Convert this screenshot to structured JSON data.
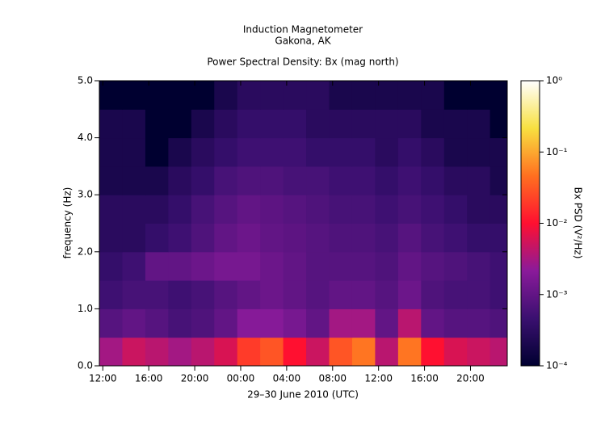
{
  "chart_data": {
    "type": "heatmap",
    "title": "Induction Magnetometer",
    "subtitle": "Gakona, AK",
    "plot_title": "Power Spectral Density: Bx (mag north)",
    "x_label": "29–30 June 2010 (UTC)",
    "y_label": "frequency (Hz)",
    "colorbar_label": "Bx PSD (V²/Hz)",
    "xlim": [
      11.7,
      47.2
    ],
    "xticks": [
      {
        "value": 12,
        "label": "12:00"
      },
      {
        "value": 16,
        "label": "16:00"
      },
      {
        "value": 20,
        "label": "20:00"
      },
      {
        "value": 24,
        "label": "00:00"
      },
      {
        "value": 28,
        "label": "04:00"
      },
      {
        "value": 32,
        "label": "08:00"
      },
      {
        "value": 36,
        "label": "12:00"
      },
      {
        "value": 40,
        "label": "16:00"
      },
      {
        "value": 44,
        "label": "20:00"
      }
    ],
    "ylim": [
      0,
      5
    ],
    "yticks": [
      {
        "value": 0,
        "label": "0.0"
      },
      {
        "value": 1,
        "label": "1.0"
      },
      {
        "value": 2,
        "label": "2.0"
      },
      {
        "value": 3,
        "label": "3.0"
      },
      {
        "value": 4,
        "label": "4.0"
      },
      {
        "value": 5,
        "label": "5.0"
      }
    ],
    "zlim": [
      0.0001,
      1
    ],
    "zscale": "log",
    "zticks": [
      {
        "value": 0.0001,
        "label": "10⁻⁴"
      },
      {
        "value": 0.001,
        "label": "10⁻³"
      },
      {
        "value": 0.01,
        "label": "10⁻²"
      },
      {
        "value": 0.1,
        "label": "10⁻¹"
      },
      {
        "value": 1,
        "label": "10⁰"
      }
    ],
    "colormap": [
      "#000030",
      "#3a1070",
      "#8a1a9a",
      "#ff1030",
      "#ff7020",
      "#f8e040",
      "#ffffff"
    ],
    "x": [
      12.7,
      14.7,
      16.7,
      18.7,
      20.7,
      22.7,
      24.7,
      26.7,
      28.7,
      30.7,
      32.7,
      34.7,
      36.7,
      38.7,
      40.7,
      42.7,
      44.7,
      46.7
    ],
    "y": [
      0.25,
      0.75,
      1.25,
      1.75,
      2.25,
      2.75,
      3.25,
      3.75,
      4.25,
      4.75
    ],
    "z": [
      [
        0.003,
        0.005,
        0.004,
        0.003,
        0.004,
        0.006,
        0.02,
        0.03,
        0.01,
        0.005,
        0.03,
        0.05,
        0.004,
        0.05,
        0.01,
        0.006,
        0.005,
        0.004
      ],
      [
        0.0008,
        0.001,
        0.0008,
        0.0006,
        0.0007,
        0.001,
        0.002,
        0.002,
        0.0015,
        0.001,
        0.003,
        0.003,
        0.001,
        0.004,
        0.001,
        0.0008,
        0.0008,
        0.0007
      ],
      [
        0.0005,
        0.0006,
        0.0006,
        0.0005,
        0.0006,
        0.0008,
        0.001,
        0.0012,
        0.001,
        0.0008,
        0.001,
        0.001,
        0.0008,
        0.0012,
        0.0007,
        0.0006,
        0.0006,
        0.0005
      ],
      [
        0.0004,
        0.0005,
        0.001,
        0.001,
        0.0012,
        0.0015,
        0.0015,
        0.0012,
        0.001,
        0.0008,
        0.0008,
        0.0008,
        0.0007,
        0.001,
        0.0008,
        0.0007,
        0.0006,
        0.0005
      ],
      [
        0.0003,
        0.0003,
        0.0004,
        0.0005,
        0.0007,
        0.001,
        0.0012,
        0.001,
        0.0009,
        0.0008,
        0.0007,
        0.0007,
        0.0006,
        0.0008,
        0.0006,
        0.0005,
        0.0004,
        0.0004
      ],
      [
        0.0003,
        0.0003,
        0.0003,
        0.0004,
        0.0006,
        0.0008,
        0.001,
        0.0009,
        0.0008,
        0.0007,
        0.0006,
        0.0006,
        0.0005,
        0.0006,
        0.0005,
        0.0004,
        0.0003,
        0.0003
      ],
      [
        0.0002,
        0.0002,
        0.0002,
        0.0003,
        0.0004,
        0.0006,
        0.0007,
        0.0007,
        0.0006,
        0.0006,
        0.0005,
        0.0005,
        0.0004,
        0.0005,
        0.0004,
        0.0003,
        0.0003,
        0.0002
      ],
      [
        0.0002,
        0.0002,
        0.0001,
        0.0002,
        0.0003,
        0.0004,
        0.0005,
        0.0005,
        0.0005,
        0.0004,
        0.0004,
        0.0004,
        0.0003,
        0.0004,
        0.0003,
        0.0002,
        0.0002,
        0.0002
      ],
      [
        0.0002,
        0.0002,
        0.0001,
        0.0001,
        0.0002,
        0.0003,
        0.0004,
        0.0004,
        0.0004,
        0.0003,
        0.0003,
        0.0003,
        0.0003,
        0.0003,
        0.0002,
        0.0002,
        0.0002,
        0.0001
      ],
      [
        0.0001,
        0.0001,
        0.0001,
        0.0001,
        0.0001,
        0.0002,
        0.0003,
        0.0003,
        0.0003,
        0.0003,
        0.0002,
        0.0002,
        0.0002,
        0.0002,
        0.0002,
        0.0001,
        0.0001,
        0.0001
      ]
    ]
  }
}
